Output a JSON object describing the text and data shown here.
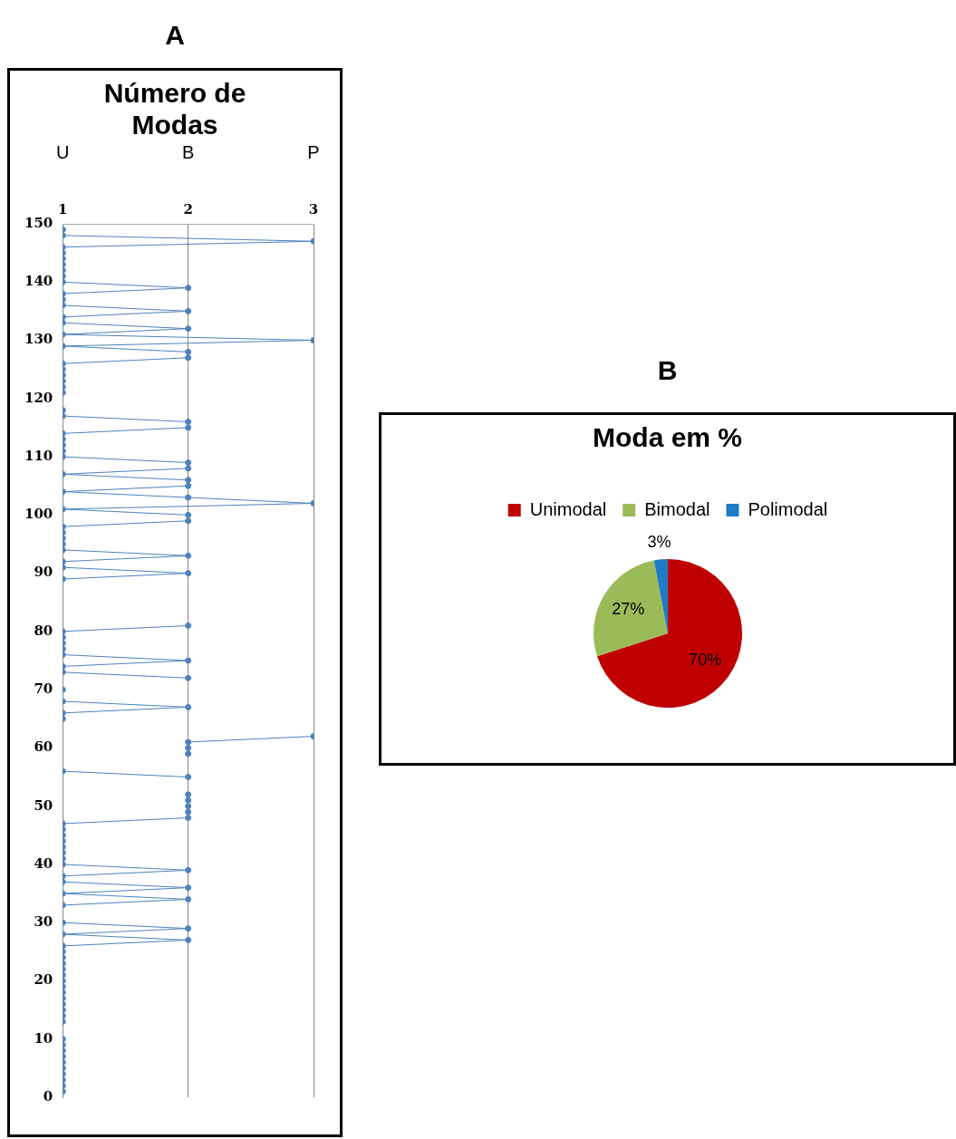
{
  "chart_data": [
    {
      "type": "line",
      "title": "Número de Modas",
      "annotations": [
        "A",
        "U",
        "B",
        "P"
      ],
      "x": [
        1,
        1,
        1,
        1,
        1,
        1,
        1,
        1,
        1,
        1,
        null,
        null,
        1,
        1,
        1,
        1,
        1,
        1,
        1,
        1,
        1,
        1,
        1,
        1,
        1,
        1,
        2,
        1,
        2,
        1,
        null,
        null,
        1,
        2,
        1,
        2,
        1,
        1,
        2,
        1,
        1,
        1,
        1,
        1,
        1,
        1,
        1,
        2,
        2,
        2,
        2,
        2,
        null,
        null,
        2,
        1,
        null,
        null,
        2,
        2,
        2,
        3,
        null,
        null,
        1,
        1,
        2,
        1,
        null,
        1,
        null,
        2,
        1,
        1,
        2,
        1,
        1,
        1,
        1,
        1,
        2,
        null,
        null,
        null,
        null,
        null,
        null,
        null,
        1,
        2,
        1,
        1,
        2,
        1,
        1,
        1,
        1,
        1,
        2,
        2,
        1,
        3,
        2,
        1,
        2,
        2,
        1,
        2,
        2,
        1,
        1,
        1,
        1,
        1,
        2,
        2,
        1,
        1,
        null,
        null,
        1,
        1,
        1,
        1,
        1,
        1,
        2,
        2,
        1,
        3,
        1,
        2,
        1,
        1,
        2,
        1,
        1,
        1,
        2,
        1,
        1,
        1,
        1,
        1,
        1,
        1,
        3,
        1,
        1
      ],
      "values": [
        1,
        2,
        3,
        4,
        5,
        6,
        7,
        8,
        9,
        10,
        null,
        null,
        13,
        14,
        15,
        16,
        17,
        18,
        19,
        20,
        21,
        22,
        23,
        24,
        25,
        26,
        27,
        28,
        29,
        30,
        null,
        null,
        33,
        34,
        35,
        36,
        37,
        38,
        39,
        40,
        41,
        42,
        43,
        44,
        45,
        46,
        47,
        48,
        49,
        50,
        51,
        52,
        null,
        null,
        55,
        56,
        null,
        null,
        59,
        60,
        61,
        62,
        null,
        null,
        65,
        66,
        67,
        68,
        null,
        70,
        null,
        72,
        73,
        74,
        75,
        76,
        77,
        78,
        79,
        80,
        81,
        null,
        null,
        null,
        null,
        null,
        null,
        null,
        89,
        90,
        91,
        92,
        93,
        94,
        95,
        96,
        97,
        98,
        99,
        100,
        101,
        102,
        103,
        104,
        105,
        106,
        107,
        108,
        109,
        110,
        111,
        112,
        113,
        114,
        115,
        116,
        117,
        118,
        null,
        null,
        121,
        122,
        123,
        124,
        125,
        126,
        127,
        128,
        129,
        130,
        131,
        132,
        133,
        134,
        135,
        136,
        137,
        138,
        139,
        140,
        141,
        142,
        143,
        144,
        145,
        146,
        147,
        148,
        149
      ],
      "color": "#4f81bd",
      "marker": "circle",
      "grid": "x",
      "xlim": [
        1,
        3
      ],
      "xticks": [
        1,
        2,
        3
      ],
      "ylim": [
        0,
        150
      ],
      "yticks": [
        0,
        10,
        20,
        30,
        40,
        50,
        60,
        70,
        80,
        90,
        100,
        110,
        120,
        130,
        140,
        150
      ]
    },
    {
      "type": "pie",
      "title": "Moda em %",
      "annotations": [
        "B"
      ],
      "categories": [
        "Unimodal",
        "Bimodal",
        "Polimodal"
      ],
      "values": [
        70,
        27,
        3
      ],
      "colors": [
        "#c00000",
        "#9bbb59",
        "#1f7bc4"
      ],
      "value_labels": [
        "70%",
        "27%",
        "3%"
      ],
      "legend": "top"
    }
  ]
}
